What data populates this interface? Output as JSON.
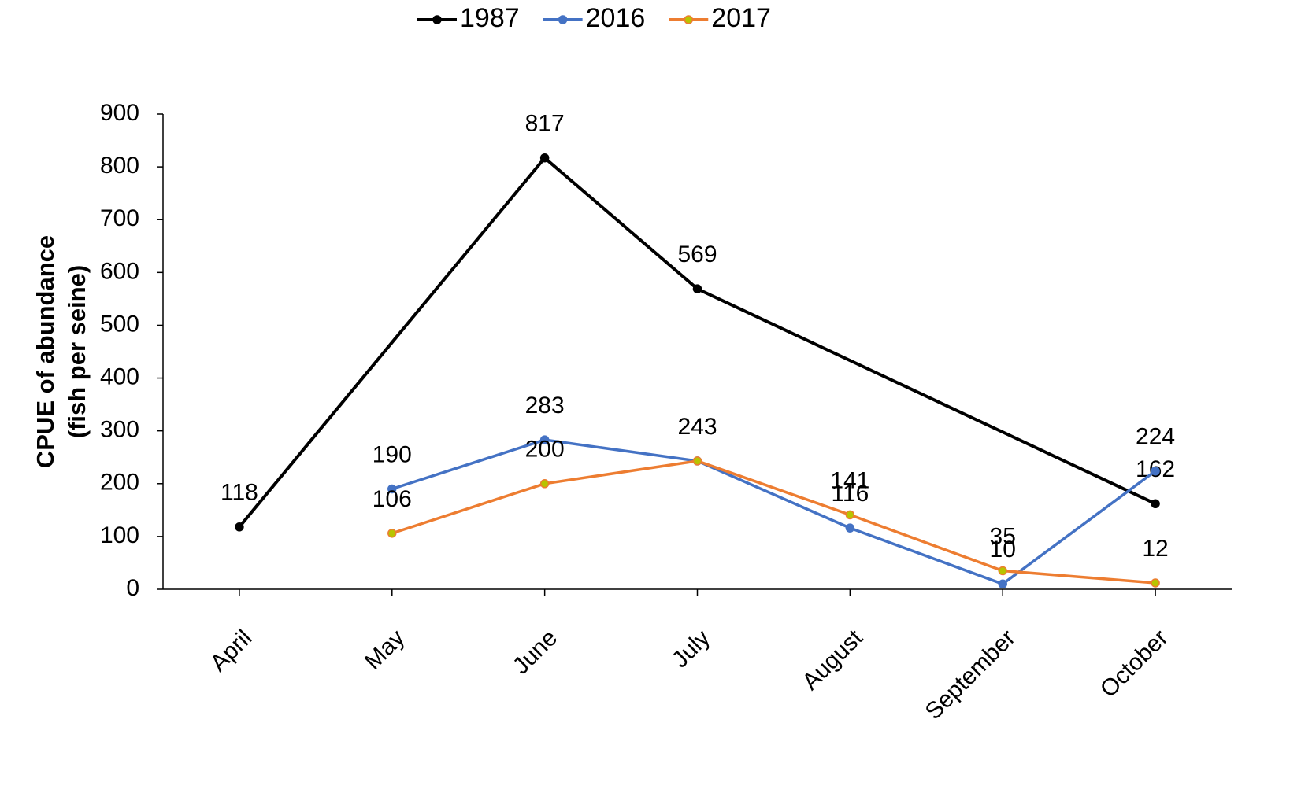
{
  "chart_data": {
    "type": "line",
    "y_label": [
      "CPUE of abundance",
      "(fish per seine)"
    ],
    "categories": [
      "April",
      "May",
      "June",
      "July",
      "August",
      "September",
      "October"
    ],
    "series": [
      {
        "name": "1987",
        "color": "#000000",
        "marker_color": "#000000",
        "values": [
          118,
          null,
          817,
          569,
          null,
          null,
          162
        ]
      },
      {
        "name": "2016",
        "color": "#4472c4",
        "marker_color": "#4472c4",
        "values": [
          null,
          190,
          283,
          243,
          116,
          10,
          224
        ]
      },
      {
        "name": "2017",
        "color": "#ed7d31",
        "marker_color": "#b8c400",
        "values": [
          null,
          106,
          200,
          243,
          141,
          35,
          12
        ]
      }
    ],
    "span_gaps": true,
    "ylim": [
      0,
      900
    ],
    "yticks": [
      0,
      100,
      200,
      300,
      400,
      500,
      600,
      700,
      800,
      900
    ],
    "legend": "top",
    "grid": false
  }
}
